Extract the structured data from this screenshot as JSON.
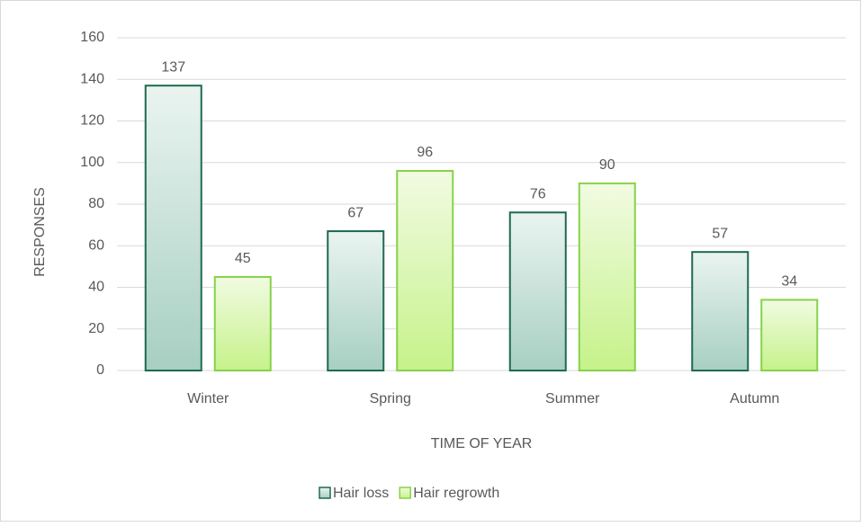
{
  "chart_data": {
    "type": "bar",
    "categories": [
      "Winter",
      "Spring",
      "Summer",
      "Autumn"
    ],
    "series": [
      {
        "name": "Hair loss",
        "color": "#1e6b4c",
        "values": [
          137,
          67,
          76,
          57
        ]
      },
      {
        "name": "Hair regrowth",
        "color": "#86d24a",
        "values": [
          45,
          96,
          90,
          34
        ]
      }
    ],
    "xlabel": "TIME OF YEAR",
    "ylabel": "RESPONSES",
    "ylim": [
      0,
      160
    ],
    "yticks": [
      0,
      20,
      40,
      60,
      80,
      100,
      120,
      140,
      160
    ],
    "grid": true,
    "legend": "bottom"
  }
}
